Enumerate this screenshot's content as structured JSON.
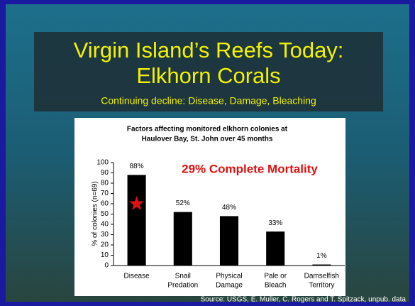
{
  "slide": {
    "title_line1": "Virgin Island’s Reefs Today:",
    "title_line2": "Elkhorn Corals",
    "subtitle": "Continuing decline: Disease, Damage, Bleaching",
    "source": "Source: USGS, E. Muller, C. Rogers and T. Spitzack, unpub. data"
  },
  "chart_data": {
    "type": "bar",
    "title": [
      "Factors affecting monitored elkhorn colonies at",
      "Haulover Bay, St. John over 45 months"
    ],
    "annotation": "29% Complete Mortality",
    "y_label": "% of colonies (n=69)",
    "categories": [
      [
        "Disease"
      ],
      [
        "Snail",
        "Predation"
      ],
      [
        "Physical",
        "Damage"
      ],
      [
        "Pale or",
        "Bleach"
      ],
      [
        "Damselfish",
        "Territory"
      ]
    ],
    "values": [
      88,
      52,
      48,
      33,
      1
    ],
    "value_labels": [
      "88%",
      "52%",
      "48%",
      "33%",
      "1%"
    ],
    "color": "#000000",
    "ylim": [
      0,
      100
    ],
    "yticks": [
      0,
      10,
      20,
      30,
      40,
      50,
      60,
      70,
      80,
      90,
      100
    ]
  }
}
